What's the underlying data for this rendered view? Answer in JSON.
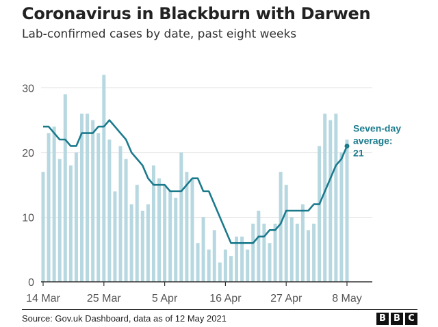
{
  "chart_data": {
    "type": "bar",
    "title": "Coronavirus in Blackburn with Darwen",
    "subtitle": "Lab-confirmed cases by date, past eight weeks",
    "x": [
      "2021-03-14",
      "2021-03-15",
      "2021-03-16",
      "2021-03-17",
      "2021-03-18",
      "2021-03-19",
      "2021-03-20",
      "2021-03-21",
      "2021-03-22",
      "2021-03-23",
      "2021-03-24",
      "2021-03-25",
      "2021-03-26",
      "2021-03-27",
      "2021-03-28",
      "2021-03-29",
      "2021-03-30",
      "2021-03-31",
      "2021-04-01",
      "2021-04-02",
      "2021-04-03",
      "2021-04-04",
      "2021-04-05",
      "2021-04-06",
      "2021-04-07",
      "2021-04-08",
      "2021-04-09",
      "2021-04-10",
      "2021-04-11",
      "2021-04-12",
      "2021-04-13",
      "2021-04-14",
      "2021-04-15",
      "2021-04-16",
      "2021-04-17",
      "2021-04-18",
      "2021-04-19",
      "2021-04-20",
      "2021-04-21",
      "2021-04-22",
      "2021-04-23",
      "2021-04-24",
      "2021-04-25",
      "2021-04-26",
      "2021-04-27",
      "2021-04-28",
      "2021-04-29",
      "2021-04-30",
      "2021-05-01",
      "2021-05-02",
      "2021-05-03",
      "2021-05-04",
      "2021-05-05",
      "2021-05-06",
      "2021-05-07",
      "2021-05-08"
    ],
    "series": [
      {
        "type": "bar",
        "values": [
          17,
          23,
          24,
          19,
          29,
          18,
          20,
          26,
          26,
          25,
          23,
          32,
          22,
          14,
          21,
          19,
          12,
          15,
          11,
          12,
          18,
          16,
          15,
          14,
          13,
          20,
          17,
          16,
          6,
          10,
          5,
          8,
          3,
          5,
          4,
          7,
          7,
          5,
          9,
          11,
          9,
          6,
          9,
          17,
          15,
          10,
          9,
          12,
          8,
          9,
          21,
          26,
          25,
          26,
          20,
          22
        ],
        "color": "#b7d8e0"
      },
      {
        "type": "line",
        "values": [
          24,
          24,
          23,
          22,
          22,
          21,
          21,
          23,
          23,
          23,
          24,
          24,
          25,
          24,
          23,
          22,
          20,
          19,
          18,
          16,
          15,
          15,
          15,
          14,
          14,
          14,
          15,
          16,
          16,
          14,
          14,
          12,
          10,
          8,
          6,
          6,
          6,
          6,
          6,
          7,
          7,
          8,
          8,
          9,
          11,
          11,
          11,
          11,
          11,
          12,
          12,
          14,
          16,
          18,
          19,
          21
        ],
        "color": "#1a7a8c"
      }
    ],
    "tick_labels": [
      "14 Mar",
      "25 Mar",
      "5 Apr",
      "16 Apr",
      "27 Apr",
      "8 May"
    ],
    "tick_dates": [
      "2021-03-14",
      "2021-03-25",
      "2021-04-05",
      "2021-04-16",
      "2021-04-27",
      "2021-05-08"
    ],
    "y_ticks": [
      0,
      10,
      20,
      30
    ],
    "ylim": [
      0,
      33
    ],
    "grid": "horizontal",
    "annotation": {
      "line1": "Seven-day",
      "line2": "average:",
      "line3": "21"
    }
  },
  "footer": {
    "source": "Source: Gov.uk Dashboard, data as of 12 May 2021",
    "logo": [
      "B",
      "B",
      "C"
    ]
  },
  "colors": {
    "bar": "#b7d8e0",
    "line": "#1a7a8c",
    "grid": "#dddddd",
    "axis": "#333333"
  }
}
